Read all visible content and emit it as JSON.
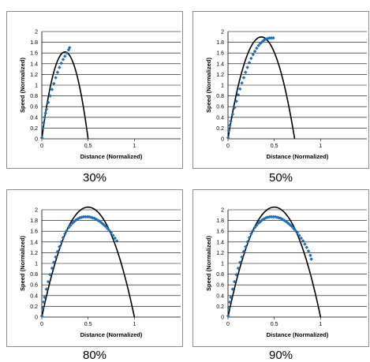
{
  "chart_data": [
    {
      "type": "line",
      "caption": "30%",
      "xlabel": "Distance (Normalized)",
      "ylabel": "Speed (Normalized)",
      "xlim": [
        0,
        1.5
      ],
      "ylim": [
        0,
        2
      ],
      "x_ticks": [
        "0",
        "0.5",
        "1"
      ],
      "y_ticks": [
        "0",
        "0.2",
        "0.4",
        "0.6",
        "0.8",
        "1",
        "1.2",
        "1.4",
        "1.6",
        "1.8",
        "2"
      ],
      "grid": "horizontal",
      "series": [
        {
          "style": "line",
          "color": "#000000",
          "peak": 1.62,
          "peak_x": 0.25,
          "root": 0.5
        },
        {
          "style": "dots",
          "color": "#1f6fb2",
          "x": [
            0.0,
            0.01,
            0.02,
            0.03,
            0.04,
            0.05,
            0.07,
            0.09,
            0.11,
            0.13,
            0.15,
            0.17,
            0.19,
            0.21,
            0.23,
            0.25,
            0.27,
            0.29,
            0.3
          ],
          "y": [
            0.02,
            0.2,
            0.3,
            0.4,
            0.48,
            0.55,
            0.68,
            0.8,
            0.92,
            1.03,
            1.14,
            1.24,
            1.33,
            1.41,
            1.48,
            1.54,
            1.6,
            1.66,
            1.7
          ]
        }
      ]
    },
    {
      "type": "line",
      "caption": "50%",
      "xlabel": "Distance (Normalized)",
      "ylabel": "Speed (Normalized)",
      "xlim": [
        0,
        1.5
      ],
      "ylim": [
        0,
        2
      ],
      "x_ticks": [
        "0",
        "0.5",
        "1"
      ],
      "y_ticks": [
        "0",
        "0.2",
        "0.4",
        "0.6",
        "0.8",
        "1",
        "1.2",
        "1.4",
        "1.6",
        "1.8",
        "2"
      ],
      "grid": "horizontal",
      "series": [
        {
          "style": "line",
          "color": "#000000",
          "peak": 1.9,
          "peak_x": 0.36,
          "root": 0.72
        },
        {
          "style": "dots",
          "color": "#1f6fb2",
          "x": [
            0.0,
            0.01,
            0.02,
            0.03,
            0.05,
            0.07,
            0.09,
            0.11,
            0.13,
            0.15,
            0.17,
            0.19,
            0.21,
            0.23,
            0.25,
            0.27,
            0.29,
            0.31,
            0.33,
            0.35,
            0.37,
            0.39,
            0.41,
            0.43,
            0.45,
            0.47,
            0.49
          ],
          "y": [
            0.02,
            0.15,
            0.25,
            0.33,
            0.46,
            0.58,
            0.7,
            0.82,
            0.93,
            1.04,
            1.14,
            1.24,
            1.33,
            1.42,
            1.5,
            1.57,
            1.63,
            1.69,
            1.74,
            1.78,
            1.81,
            1.84,
            1.86,
            1.87,
            1.88,
            1.88,
            1.88
          ]
        }
      ]
    },
    {
      "type": "line",
      "caption": "80%",
      "xlabel": "Distance (Normalized)",
      "ylabel": "Speed (Normalized)",
      "xlim": [
        0,
        1.5
      ],
      "ylim": [
        0,
        2
      ],
      "x_ticks": [
        "0",
        "0.5",
        "1"
      ],
      "y_ticks": [
        "0",
        "0.2",
        "0.4",
        "0.6",
        "0.8",
        "1",
        "1.2",
        "1.4",
        "1.6",
        "1.8",
        "2"
      ],
      "grid": "horizontal",
      "series": [
        {
          "style": "line",
          "color": "#000000",
          "peak": 2.05,
          "peak_x": 0.5,
          "root": 1.0
        },
        {
          "style": "dots",
          "color": "#1f6fb2",
          "x": [
            0.0,
            0.01,
            0.02,
            0.03,
            0.05,
            0.07,
            0.09,
            0.11,
            0.13,
            0.15,
            0.17,
            0.19,
            0.21,
            0.23,
            0.25,
            0.27,
            0.29,
            0.31,
            0.33,
            0.35,
            0.37,
            0.39,
            0.41,
            0.43,
            0.45,
            0.47,
            0.49,
            0.51,
            0.53,
            0.55,
            0.57,
            0.59,
            0.61,
            0.63,
            0.65,
            0.67,
            0.69,
            0.71,
            0.73,
            0.75,
            0.77,
            0.79,
            0.81
          ],
          "y": [
            0.02,
            0.17,
            0.28,
            0.37,
            0.52,
            0.66,
            0.79,
            0.91,
            1.02,
            1.12,
            1.22,
            1.31,
            1.4,
            1.48,
            1.55,
            1.61,
            1.67,
            1.71,
            1.75,
            1.78,
            1.81,
            1.83,
            1.85,
            1.86,
            1.87,
            1.87,
            1.87,
            1.87,
            1.86,
            1.85,
            1.84,
            1.82,
            1.8,
            1.78,
            1.75,
            1.72,
            1.69,
            1.65,
            1.61,
            1.57,
            1.52,
            1.47,
            1.42
          ]
        }
      ]
    },
    {
      "type": "line",
      "caption": "90%",
      "xlabel": "Distance (Normalized)",
      "ylabel": "Speed (Normalized)",
      "xlim": [
        0,
        1.5
      ],
      "ylim": [
        0,
        2
      ],
      "x_ticks": [
        "0",
        "0.5",
        "1"
      ],
      "y_ticks": [
        "0",
        "0.2",
        "0.4",
        "0.6",
        "0.8",
        "1",
        "1.2",
        "1.4",
        "1.6",
        "1.8",
        "2"
      ],
      "grid": "horizontal",
      "series": [
        {
          "style": "line",
          "color": "#000000",
          "peak": 2.05,
          "peak_x": 0.5,
          "root": 1.0
        },
        {
          "style": "dots",
          "color": "#1f6fb2",
          "x": [
            0.0,
            0.01,
            0.02,
            0.03,
            0.05,
            0.07,
            0.09,
            0.11,
            0.13,
            0.15,
            0.17,
            0.19,
            0.21,
            0.23,
            0.25,
            0.27,
            0.29,
            0.31,
            0.33,
            0.35,
            0.37,
            0.39,
            0.41,
            0.43,
            0.45,
            0.47,
            0.49,
            0.51,
            0.53,
            0.55,
            0.57,
            0.59,
            0.61,
            0.63,
            0.65,
            0.67,
            0.69,
            0.71,
            0.73,
            0.75,
            0.77,
            0.79,
            0.81,
            0.83,
            0.85,
            0.87,
            0.89,
            0.9
          ],
          "y": [
            0.02,
            0.17,
            0.28,
            0.37,
            0.52,
            0.66,
            0.79,
            0.91,
            1.02,
            1.12,
            1.22,
            1.31,
            1.4,
            1.48,
            1.55,
            1.61,
            1.67,
            1.71,
            1.75,
            1.78,
            1.81,
            1.83,
            1.85,
            1.86,
            1.87,
            1.87,
            1.87,
            1.87,
            1.86,
            1.85,
            1.84,
            1.82,
            1.8,
            1.78,
            1.75,
            1.72,
            1.69,
            1.65,
            1.61,
            1.57,
            1.52,
            1.47,
            1.42,
            1.36,
            1.3,
            1.23,
            1.15,
            1.08
          ]
        }
      ]
    }
  ]
}
